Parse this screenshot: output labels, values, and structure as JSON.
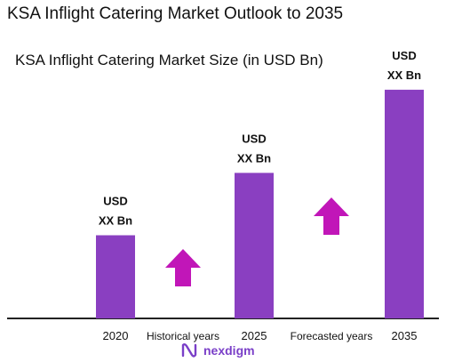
{
  "header": {
    "title": "KSA Inflight Catering Market Outlook to 2035",
    "subtitle": "KSA Inflight Catering Market Size (in USD Bn)"
  },
  "brand": {
    "name": "nexdigm"
  },
  "colors": {
    "bar": "#8a3fc1",
    "arrow": "#c116b8",
    "axis": "#222222"
  },
  "chart_data": {
    "type": "bar",
    "categories": [
      "2020",
      "2025",
      "2035"
    ],
    "values": [
      1.0,
      1.75,
      2.75
    ],
    "value_labels": [
      [
        "USD",
        "XX Bn"
      ],
      [
        "USD",
        "XX Bn"
      ],
      [
        "USD",
        "XX Bn"
      ]
    ],
    "ylim": [
      0,
      3
    ],
    "annotations": [
      {
        "text": "Historical years",
        "between": [
          "2020",
          "2025"
        ],
        "arrow": "up"
      },
      {
        "text": "Forecasted years",
        "between": [
          "2025",
          "2035"
        ],
        "arrow": "up"
      }
    ],
    "xlabel": "",
    "ylabel": "",
    "grid": false,
    "legend": "none"
  }
}
